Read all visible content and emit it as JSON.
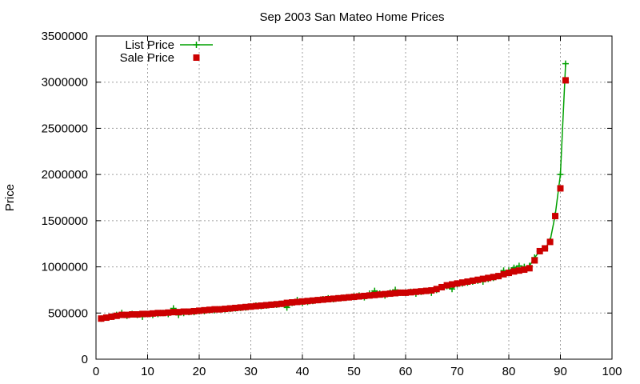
{
  "chart_data": {
    "type": "line",
    "title": "Sep 2003 San Mateo Home Prices",
    "xlabel": "",
    "ylabel": "Price",
    "xlim": [
      0,
      100
    ],
    "ylim": [
      0,
      3500000
    ],
    "x_ticks": [
      "0",
      "10",
      "20",
      "30",
      "40",
      "50",
      "60",
      "70",
      "80",
      "90",
      "100"
    ],
    "y_ticks": [
      "0",
      "500000",
      "1000000",
      "1500000",
      "2000000",
      "2500000",
      "3000000",
      "3500000"
    ],
    "grid": true,
    "legend_position": "top-left",
    "series": [
      {
        "name": "List Price",
        "style": "line-with-plus-markers",
        "color": "#00a000",
        "x": [
          1,
          2,
          3,
          4,
          5,
          6,
          7,
          8,
          9,
          10,
          11,
          12,
          13,
          14,
          15,
          16,
          17,
          18,
          19,
          20,
          21,
          22,
          23,
          24,
          25,
          26,
          27,
          28,
          29,
          30,
          31,
          32,
          33,
          34,
          35,
          36,
          37,
          38,
          39,
          40,
          41,
          42,
          43,
          44,
          45,
          46,
          47,
          48,
          49,
          50,
          51,
          52,
          53,
          54,
          55,
          56,
          57,
          58,
          59,
          60,
          61,
          62,
          63,
          64,
          65,
          66,
          67,
          68,
          69,
          70,
          71,
          72,
          73,
          74,
          75,
          76,
          77,
          78,
          79,
          80,
          81,
          82,
          83,
          84,
          85,
          86,
          87,
          88,
          89,
          90,
          91
        ],
        "values": [
          440000,
          450000,
          460000,
          480000,
          500000,
          470000,
          490000,
          480000,
          460000,
          490000,
          480000,
          490000,
          500000,
          490000,
          550000,
          480000,
          500000,
          510000,
          510000,
          520000,
          520000,
          530000,
          530000,
          540000,
          540000,
          545000,
          550000,
          555000,
          560000,
          570000,
          580000,
          575000,
          580000,
          590000,
          590000,
          600000,
          560000,
          610000,
          640000,
          610000,
          620000,
          630000,
          640000,
          650000,
          660000,
          650000,
          660000,
          665000,
          670000,
          680000,
          690000,
          670000,
          710000,
          740000,
          710000,
          690000,
          720000,
          750000,
          720000,
          720000,
          730000,
          710000,
          730000,
          740000,
          720000,
          750000,
          780000,
          790000,
          760000,
          810000,
          820000,
          830000,
          840000,
          850000,
          840000,
          870000,
          880000,
          900000,
          960000,
          960000,
          990000,
          1010000,
          1000000,
          1010000,
          1100000,
          1170000,
          1200000,
          1280000,
          1560000,
          2000000,
          3200000
        ]
      },
      {
        "name": "Sale Price",
        "style": "square-markers",
        "color": "#cc0000",
        "x": [
          1,
          2,
          3,
          4,
          5,
          6,
          7,
          8,
          9,
          10,
          11,
          12,
          13,
          14,
          15,
          16,
          17,
          18,
          19,
          20,
          21,
          22,
          23,
          24,
          25,
          26,
          27,
          28,
          29,
          30,
          31,
          32,
          33,
          34,
          35,
          36,
          37,
          38,
          39,
          40,
          41,
          42,
          43,
          44,
          45,
          46,
          47,
          48,
          49,
          50,
          51,
          52,
          53,
          54,
          55,
          56,
          57,
          58,
          59,
          60,
          61,
          62,
          63,
          64,
          65,
          66,
          67,
          68,
          69,
          70,
          71,
          72,
          73,
          74,
          75,
          76,
          77,
          78,
          79,
          80,
          81,
          82,
          83,
          84,
          85,
          86,
          87,
          88,
          89,
          90,
          91
        ],
        "values": [
          440000,
          450000,
          460000,
          470000,
          480000,
          480000,
          485000,
          485000,
          490000,
          490000,
          495000,
          500000,
          500000,
          505000,
          510000,
          510000,
          515000,
          515000,
          520000,
          525000,
          530000,
          535000,
          540000,
          540000,
          545000,
          550000,
          555000,
          560000,
          565000,
          570000,
          575000,
          580000,
          585000,
          590000,
          595000,
          600000,
          610000,
          615000,
          620000,
          625000,
          630000,
          635000,
          640000,
          645000,
          650000,
          655000,
          660000,
          665000,
          670000,
          675000,
          680000,
          685000,
          690000,
          695000,
          700000,
          705000,
          710000,
          715000,
          720000,
          720000,
          725000,
          730000,
          735000,
          740000,
          745000,
          760000,
          780000,
          800000,
          810000,
          820000,
          830000,
          840000,
          850000,
          860000,
          870000,
          880000,
          890000,
          900000,
          920000,
          935000,
          950000,
          960000,
          970000,
          985000,
          1070000,
          1170000,
          1200000,
          1270000,
          1550000,
          1850000,
          3020000
        ]
      }
    ]
  }
}
